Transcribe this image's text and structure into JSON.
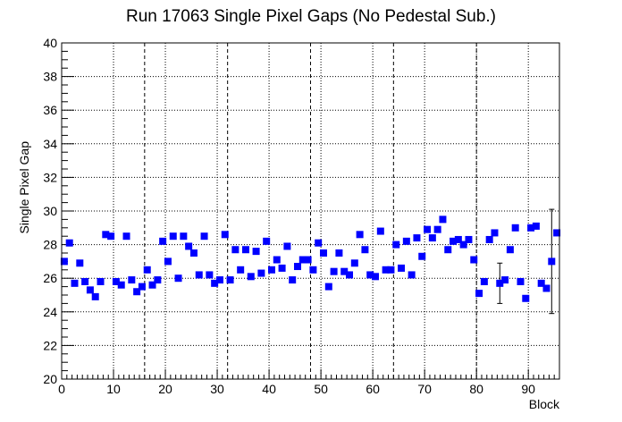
{
  "chart_data": {
    "type": "scatter",
    "title": "Run 17063 Single Pixel Gaps (No Pedestal Sub.)",
    "xlabel": "Block",
    "ylabel": "Single Pixel Gap",
    "xlim": [
      0,
      96
    ],
    "ylim": [
      20,
      40
    ],
    "x_major_ticks": [
      0,
      10,
      20,
      30,
      40,
      50,
      60,
      70,
      80,
      90
    ],
    "y_major_ticks": [
      20,
      22,
      24,
      26,
      28,
      30,
      32,
      34,
      36,
      38,
      40
    ],
    "grid": "dotted",
    "vertical_dividers": [
      16,
      32,
      48,
      64,
      80
    ],
    "marker_color": "#0000ff",
    "series": [
      {
        "x": [
          0.5,
          1.5,
          2.5,
          3.5,
          4.5,
          5.5,
          6.5,
          7.5,
          8.5,
          9.5,
          10.5,
          11.5,
          12.5,
          13.5,
          14.5,
          15.5,
          16.5,
          17.5,
          18.5,
          19.5,
          20.5,
          21.5,
          22.5,
          23.5,
          24.5,
          25.5,
          26.5,
          27.5,
          28.5,
          29.5,
          30.5,
          31.5,
          32.5,
          33.5,
          34.5,
          35.5,
          36.5,
          37.5,
          38.5,
          39.5,
          40.5,
          41.5,
          42.5,
          43.5,
          44.5,
          45.5,
          46.5,
          47.5,
          48.5,
          49.5,
          50.5,
          51.5,
          52.5,
          53.5,
          54.5,
          55.5,
          56.5,
          57.5,
          58.5,
          59.5,
          60.5,
          61.5,
          62.5,
          63.5,
          64.5,
          65.5,
          66.5,
          67.5,
          68.5,
          69.5,
          70.5,
          71.5,
          72.5,
          73.5,
          74.5,
          75.5,
          76.5,
          77.5,
          78.5,
          79.5,
          80.5,
          81.5,
          82.5,
          83.5,
          84.5,
          85.5,
          86.5,
          87.5,
          88.5,
          89.5,
          90.5,
          91.5,
          92.5,
          93.5,
          94.5,
          95.5
        ],
        "y": [
          27.0,
          28.1,
          25.7,
          26.9,
          25.8,
          25.3,
          24.9,
          25.8,
          28.6,
          28.5,
          25.8,
          25.6,
          28.5,
          25.9,
          25.2,
          25.5,
          26.5,
          25.6,
          25.9,
          28.2,
          27.0,
          28.5,
          26.0,
          28.5,
          27.9,
          27.5,
          26.2,
          28.5,
          26.2,
          25.7,
          25.9,
          28.6,
          25.9,
          27.7,
          26.5,
          27.7,
          26.1,
          27.6,
          26.3,
          28.2,
          26.5,
          27.1,
          26.6,
          27.9,
          25.9,
          26.7,
          27.1,
          27.1,
          26.5,
          28.1,
          27.5,
          25.5,
          26.4,
          27.5,
          26.4,
          26.2,
          26.9,
          28.6,
          27.7,
          26.2,
          26.1,
          28.8,
          26.5,
          26.5,
          28.0,
          26.6,
          28.2,
          26.2,
          28.4,
          27.3,
          28.9,
          28.4,
          28.9,
          29.5,
          27.7,
          28.2,
          28.3,
          28.0,
          28.3,
          27.1,
          25.1,
          25.8,
          28.3,
          28.7,
          25.7,
          25.9,
          27.7,
          29.0,
          25.8,
          24.8,
          29.0,
          29.1,
          25.7,
          25.4,
          27.0,
          28.7
        ],
        "error_bars": [
          {
            "x": 84.5,
            "low": 24.5,
            "high": 26.9
          },
          {
            "x": 94.5,
            "low": 23.9,
            "high": 30.1
          }
        ]
      }
    ]
  }
}
